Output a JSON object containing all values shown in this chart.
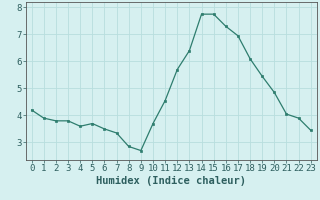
{
  "x": [
    0,
    1,
    2,
    3,
    4,
    5,
    6,
    7,
    8,
    9,
    10,
    11,
    12,
    13,
    14,
    15,
    16,
    17,
    18,
    19,
    20,
    21,
    22,
    23
  ],
  "y": [
    4.2,
    3.9,
    3.8,
    3.8,
    3.6,
    3.7,
    3.5,
    3.35,
    2.85,
    2.7,
    3.7,
    4.55,
    5.7,
    6.4,
    7.75,
    7.75,
    7.3,
    6.95,
    6.1,
    5.45,
    4.85,
    4.05,
    3.9,
    3.45
  ],
  "xlabel": "Humidex (Indice chaleur)",
  "xlim": [
    -0.5,
    23.5
  ],
  "ylim": [
    2.35,
    8.2
  ],
  "yticks": [
    3,
    4,
    5,
    6,
    7,
    8
  ],
  "xticks": [
    0,
    1,
    2,
    3,
    4,
    5,
    6,
    7,
    8,
    9,
    10,
    11,
    12,
    13,
    14,
    15,
    16,
    17,
    18,
    19,
    20,
    21,
    22,
    23
  ],
  "line_color": "#2e7d6e",
  "marker_color": "#2e7d6e",
  "bg_color": "#d6f0f0",
  "grid_color": "#b8dede",
  "xlabel_fontsize": 7.5,
  "tick_fontsize": 6.5
}
